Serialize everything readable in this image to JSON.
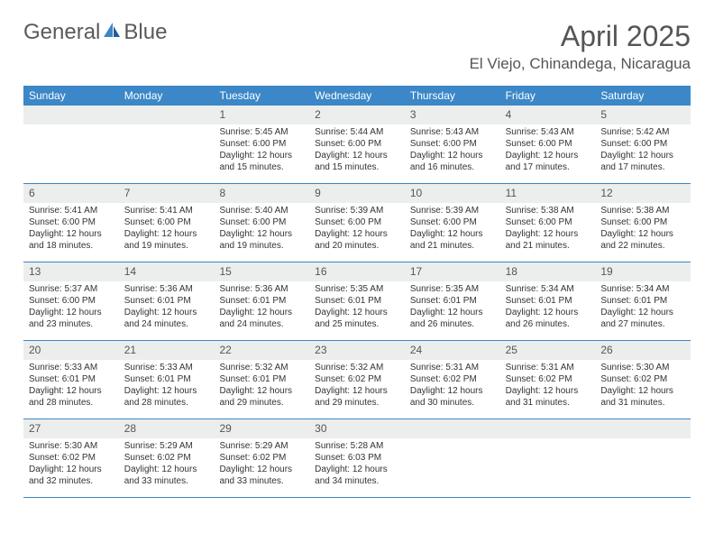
{
  "brand": {
    "part1": "General",
    "part2": "Blue"
  },
  "title": "April 2025",
  "location": "El Viejo, Chinandega, Nicaragua",
  "colors": {
    "header_bg": "#3b87c8",
    "header_text": "#ffffff",
    "daynum_bg": "#eceded",
    "border": "#3b87c8",
    "text": "#333333",
    "title_text": "#555555"
  },
  "day_names": [
    "Sunday",
    "Monday",
    "Tuesday",
    "Wednesday",
    "Thursday",
    "Friday",
    "Saturday"
  ],
  "weeks": [
    [
      null,
      null,
      {
        "n": "1",
        "sr": "5:45 AM",
        "ss": "6:00 PM",
        "dl": "12 hours and 15 minutes."
      },
      {
        "n": "2",
        "sr": "5:44 AM",
        "ss": "6:00 PM",
        "dl": "12 hours and 15 minutes."
      },
      {
        "n": "3",
        "sr": "5:43 AM",
        "ss": "6:00 PM",
        "dl": "12 hours and 16 minutes."
      },
      {
        "n": "4",
        "sr": "5:43 AM",
        "ss": "6:00 PM",
        "dl": "12 hours and 17 minutes."
      },
      {
        "n": "5",
        "sr": "5:42 AM",
        "ss": "6:00 PM",
        "dl": "12 hours and 17 minutes."
      }
    ],
    [
      {
        "n": "6",
        "sr": "5:41 AM",
        "ss": "6:00 PM",
        "dl": "12 hours and 18 minutes."
      },
      {
        "n": "7",
        "sr": "5:41 AM",
        "ss": "6:00 PM",
        "dl": "12 hours and 19 minutes."
      },
      {
        "n": "8",
        "sr": "5:40 AM",
        "ss": "6:00 PM",
        "dl": "12 hours and 19 minutes."
      },
      {
        "n": "9",
        "sr": "5:39 AM",
        "ss": "6:00 PM",
        "dl": "12 hours and 20 minutes."
      },
      {
        "n": "10",
        "sr": "5:39 AM",
        "ss": "6:00 PM",
        "dl": "12 hours and 21 minutes."
      },
      {
        "n": "11",
        "sr": "5:38 AM",
        "ss": "6:00 PM",
        "dl": "12 hours and 21 minutes."
      },
      {
        "n": "12",
        "sr": "5:38 AM",
        "ss": "6:00 PM",
        "dl": "12 hours and 22 minutes."
      }
    ],
    [
      {
        "n": "13",
        "sr": "5:37 AM",
        "ss": "6:00 PM",
        "dl": "12 hours and 23 minutes."
      },
      {
        "n": "14",
        "sr": "5:36 AM",
        "ss": "6:01 PM",
        "dl": "12 hours and 24 minutes."
      },
      {
        "n": "15",
        "sr": "5:36 AM",
        "ss": "6:01 PM",
        "dl": "12 hours and 24 minutes."
      },
      {
        "n": "16",
        "sr": "5:35 AM",
        "ss": "6:01 PM",
        "dl": "12 hours and 25 minutes."
      },
      {
        "n": "17",
        "sr": "5:35 AM",
        "ss": "6:01 PM",
        "dl": "12 hours and 26 minutes."
      },
      {
        "n": "18",
        "sr": "5:34 AM",
        "ss": "6:01 PM",
        "dl": "12 hours and 26 minutes."
      },
      {
        "n": "19",
        "sr": "5:34 AM",
        "ss": "6:01 PM",
        "dl": "12 hours and 27 minutes."
      }
    ],
    [
      {
        "n": "20",
        "sr": "5:33 AM",
        "ss": "6:01 PM",
        "dl": "12 hours and 28 minutes."
      },
      {
        "n": "21",
        "sr": "5:33 AM",
        "ss": "6:01 PM",
        "dl": "12 hours and 28 minutes."
      },
      {
        "n": "22",
        "sr": "5:32 AM",
        "ss": "6:01 PM",
        "dl": "12 hours and 29 minutes."
      },
      {
        "n": "23",
        "sr": "5:32 AM",
        "ss": "6:02 PM",
        "dl": "12 hours and 29 minutes."
      },
      {
        "n": "24",
        "sr": "5:31 AM",
        "ss": "6:02 PM",
        "dl": "12 hours and 30 minutes."
      },
      {
        "n": "25",
        "sr": "5:31 AM",
        "ss": "6:02 PM",
        "dl": "12 hours and 31 minutes."
      },
      {
        "n": "26",
        "sr": "5:30 AM",
        "ss": "6:02 PM",
        "dl": "12 hours and 31 minutes."
      }
    ],
    [
      {
        "n": "27",
        "sr": "5:30 AM",
        "ss": "6:02 PM",
        "dl": "12 hours and 32 minutes."
      },
      {
        "n": "28",
        "sr": "5:29 AM",
        "ss": "6:02 PM",
        "dl": "12 hours and 33 minutes."
      },
      {
        "n": "29",
        "sr": "5:29 AM",
        "ss": "6:02 PM",
        "dl": "12 hours and 33 minutes."
      },
      {
        "n": "30",
        "sr": "5:28 AM",
        "ss": "6:03 PM",
        "dl": "12 hours and 34 minutes."
      },
      null,
      null,
      null
    ]
  ],
  "labels": {
    "sunrise": "Sunrise:",
    "sunset": "Sunset:",
    "daylight": "Daylight:"
  }
}
